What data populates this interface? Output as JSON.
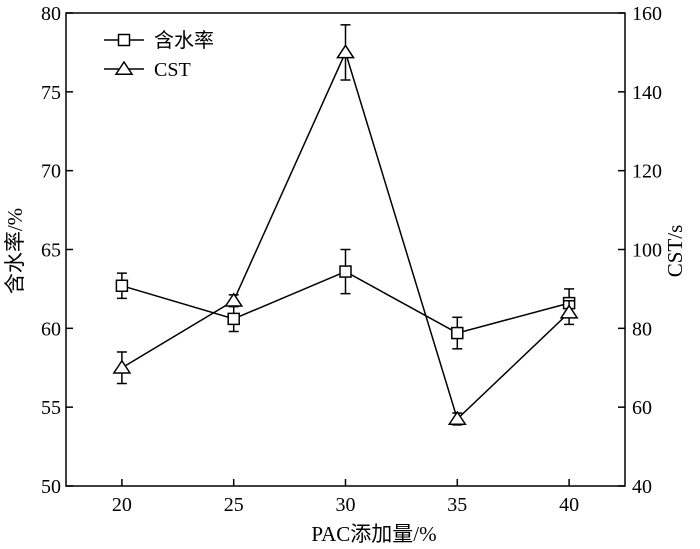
{
  "chart_data": {
    "type": "line",
    "x": [
      20,
      25,
      30,
      35,
      40
    ],
    "xlabel": "PAC添加量/%",
    "x_ticks": [
      "20",
      "25",
      "30",
      "35",
      "40"
    ],
    "xlim": [
      17.5,
      42.5
    ],
    "y_left": {
      "label": "含水率/%",
      "lim": [
        50,
        80
      ],
      "ticks": [
        "50",
        "55",
        "60",
        "65",
        "70",
        "75",
        "80"
      ]
    },
    "y_right": {
      "label": "CST/s",
      "lim": [
        40,
        160
      ],
      "ticks": [
        "40",
        "60",
        "80",
        "100",
        "120",
        "140",
        "160"
      ]
    },
    "series": [
      {
        "name": "含水率",
        "axis": "left",
        "marker": "square",
        "values": [
          62.7,
          60.6,
          63.6,
          59.7,
          61.6
        ],
        "errors": [
          0.8,
          0.8,
          1.4,
          1.0,
          0.9
        ]
      },
      {
        "name": "CST",
        "axis": "right",
        "marker": "triangle",
        "values": [
          70,
          87,
          150,
          57,
          84
        ],
        "errors": [
          4,
          1.5,
          7,
          1.5,
          3
        ]
      }
    ],
    "legend": {
      "position": "top-left"
    },
    "grid": false,
    "colors": {
      "line": "#000000",
      "background": "#ffffff"
    }
  }
}
